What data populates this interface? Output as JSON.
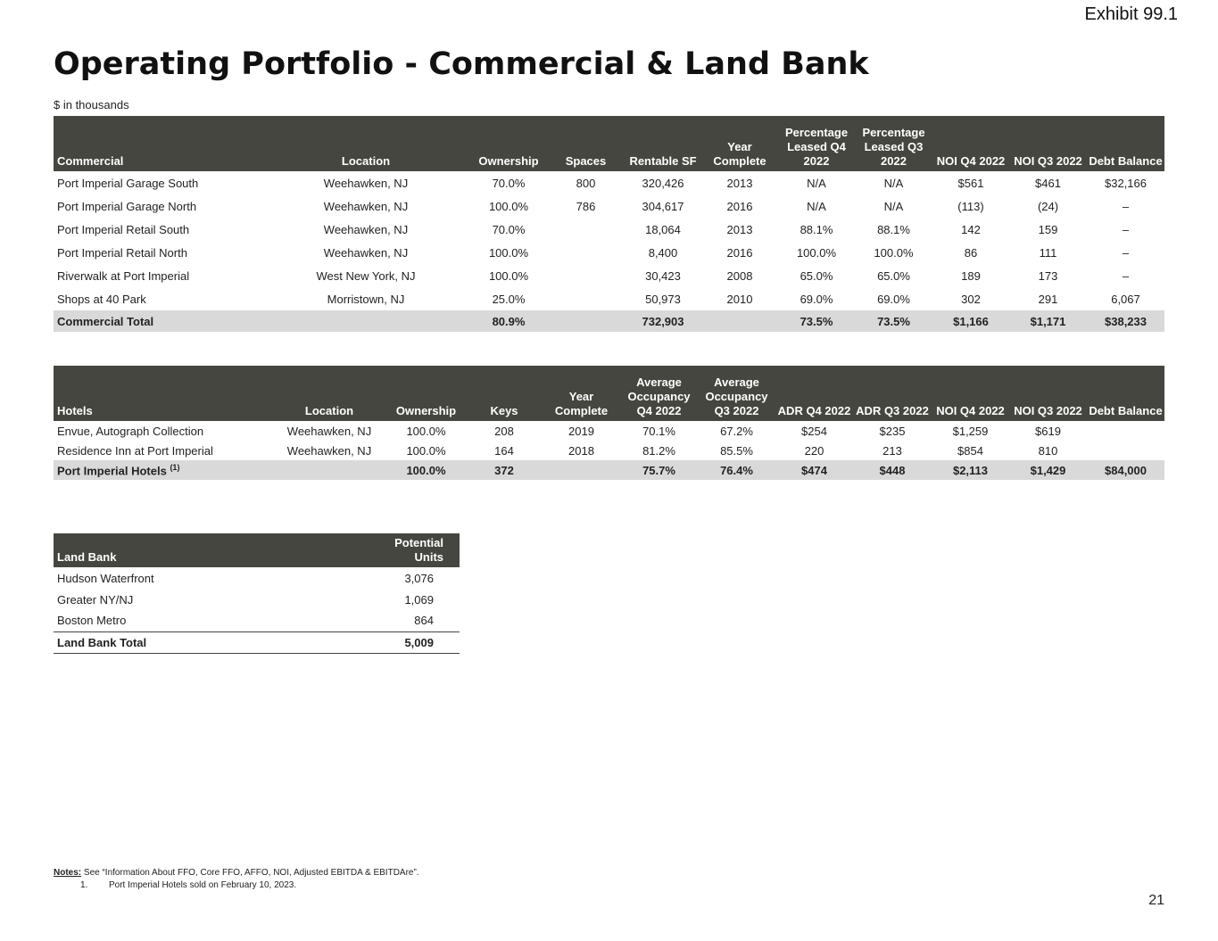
{
  "exhibit": "Exhibit 99.1",
  "title": "Operating Portfolio - Commercial & Land Bank",
  "units": "$ in thousands",
  "commercial": {
    "headers": [
      "Commercial",
      "Location",
      "Ownership",
      "Spaces",
      "Rentable SF",
      "Year Complete",
      "Percentage Leased Q4 2022",
      "Percentage Leased Q3 2022",
      "NOI Q4 2022",
      "NOI Q3 2022",
      "Debt Balance"
    ],
    "rows": [
      [
        "Port Imperial Garage South",
        "Weehawken, NJ",
        "70.0%",
        "800",
        "320,426",
        "2013",
        "N/A",
        "N/A",
        "$561",
        "$461",
        "$32,166"
      ],
      [
        "Port Imperial Garage North",
        "Weehawken, NJ",
        "100.0%",
        "786",
        "304,617",
        "2016",
        "N/A",
        "N/A",
        "(113)",
        "(24)",
        "–"
      ],
      [
        "Port Imperial Retail South",
        "Weehawken, NJ",
        "70.0%",
        "",
        "18,064",
        "2013",
        "88.1%",
        "88.1%",
        "142",
        "159",
        "–"
      ],
      [
        "Port Imperial Retail North",
        "Weehawken, NJ",
        "100.0%",
        "",
        "8,400",
        "2016",
        "100.0%",
        "100.0%",
        "86",
        "111",
        "–"
      ],
      [
        "Riverwalk at Port Imperial",
        "West New York, NJ",
        "100.0%",
        "",
        "30,423",
        "2008",
        "65.0%",
        "65.0%",
        "189",
        "173",
        "–"
      ],
      [
        "Shops at 40 Park",
        "Morristown, NJ",
        "25.0%",
        "",
        "50,973",
        "2010",
        "69.0%",
        "69.0%",
        "302",
        "291",
        "6,067"
      ]
    ],
    "total": [
      "Commercial Total",
      "",
      "80.9%",
      "",
      "732,903",
      "",
      "73.5%",
      "73.5%",
      "$1,166",
      "$1,171",
      "$38,233"
    ]
  },
  "hotels": {
    "headers": [
      "Hotels",
      "Location",
      "Ownership",
      "Keys",
      "Year Complete",
      "Average Occupancy Q4 2022",
      "Average Occupancy Q3 2022",
      "ADR Q4 2022",
      "ADR Q3 2022",
      "NOI Q4 2022",
      "NOI Q3 2022",
      "Debt Balance"
    ],
    "rows": [
      [
        "Envue, Autograph Collection",
        "Weehawken, NJ",
        "100.0%",
        "208",
        "2019",
        "70.1%",
        "67.2%",
        "$254",
        "$235",
        "$1,259",
        "$619",
        ""
      ],
      [
        "Residence Inn at Port Imperial",
        "Weehawken, NJ",
        "100.0%",
        "164",
        "2018",
        "81.2%",
        "85.5%",
        "220",
        "213",
        "$854",
        "810",
        ""
      ]
    ],
    "total": [
      "Port Imperial Hotels",
      "",
      "100.0%",
      "372",
      "",
      "75.7%",
      "76.4%",
      "$474",
      "$448",
      "$2,113",
      "$1,429",
      "$84,000"
    ],
    "total_footnote": "(1)"
  },
  "land_bank": {
    "headers": [
      "Land Bank",
      "Potential Units"
    ],
    "rows": [
      [
        "Hudson Waterfront",
        "3,076"
      ],
      [
        "Greater NY/NJ",
        "1,069"
      ],
      [
        "Boston Metro",
        "864"
      ]
    ],
    "total": [
      "Land Bank Total",
      "5,009"
    ]
  },
  "notes": {
    "label": "Notes:",
    "text": " See “Information About FFO, Core FFO, AFFO, NOI, Adjusted EBITDA & EBITDAre”.",
    "items": [
      {
        "num": "1.",
        "text": "Port Imperial Hotels sold on February 10, 2023."
      }
    ]
  },
  "page_number": "21"
}
